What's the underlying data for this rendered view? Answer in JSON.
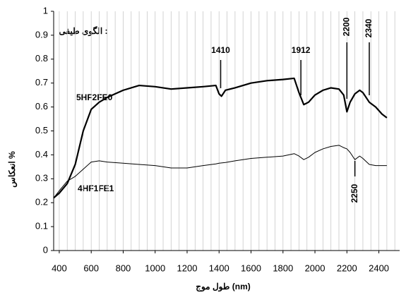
{
  "chart_data": {
    "type": "line",
    "title": "الگوی طیفی :",
    "xlabel": "طول موج (nm)",
    "ylabel": "انعکاس %",
    "x": [
      365,
      400,
      450,
      500,
      550,
      600,
      650,
      700,
      800,
      900,
      1000,
      1100,
      1200,
      1300,
      1380,
      1400,
      1415,
      1440,
      1500,
      1600,
      1700,
      1800,
      1870,
      1900,
      1930,
      1960,
      2000,
      2050,
      2100,
      2150,
      2180,
      2200,
      2220,
      2250,
      2280,
      2300,
      2340,
      2380,
      2420,
      2450
    ],
    "series": [
      {
        "name": "5HF2FE0",
        "color": "#000000",
        "width": 2.2,
        "values": [
          0.22,
          0.24,
          0.28,
          0.36,
          0.5,
          0.59,
          0.62,
          0.64,
          0.67,
          0.69,
          0.685,
          0.675,
          0.68,
          0.685,
          0.69,
          0.655,
          0.645,
          0.67,
          0.68,
          0.7,
          0.71,
          0.715,
          0.72,
          0.66,
          0.61,
          0.62,
          0.65,
          0.67,
          0.68,
          0.675,
          0.65,
          0.58,
          0.62,
          0.655,
          0.67,
          0.66,
          0.62,
          0.6,
          0.57,
          0.555
        ]
      },
      {
        "name": "4HF1FE1",
        "color": "#000000",
        "width": 1,
        "values": [
          0.22,
          0.25,
          0.29,
          0.31,
          0.34,
          0.37,
          0.375,
          0.37,
          0.365,
          0.36,
          0.355,
          0.345,
          0.345,
          0.355,
          0.362,
          0.365,
          0.366,
          0.368,
          0.375,
          0.385,
          0.39,
          0.395,
          0.405,
          0.395,
          0.38,
          0.39,
          0.41,
          0.425,
          0.435,
          0.44,
          0.43,
          0.425,
          0.41,
          0.38,
          0.395,
          0.385,
          0.36,
          0.355,
          0.355,
          0.355
        ]
      }
    ],
    "annotations": [
      1410,
      1912,
      2200,
      2340,
      2250
    ],
    "xlim": [
      365,
      2530
    ],
    "ylim": [
      0,
      1
    ],
    "xticks": [
      400,
      600,
      800,
      1000,
      1200,
      1400,
      1600,
      1800,
      2000,
      2200,
      2400
    ],
    "yticks": [
      0,
      0.1,
      0.2,
      0.3,
      0.4,
      0.5,
      0.6,
      0.7,
      0.8,
      0.9,
      1
    ],
    "xminorticks": [
      400,
      450,
      500,
      550,
      600,
      650,
      700,
      750,
      800,
      850,
      900,
      950,
      1000,
      1050,
      1100,
      1150,
      1200,
      1250,
      1300,
      1350,
      1400,
      1450,
      1500,
      1550,
      1600,
      1650,
      1700,
      1750,
      1800,
      1850,
      1900,
      1950,
      2000,
      2050,
      2100,
      2150,
      2200,
      2250,
      2300,
      2350,
      2400,
      2450,
      2500
    ],
    "grid": true
  }
}
